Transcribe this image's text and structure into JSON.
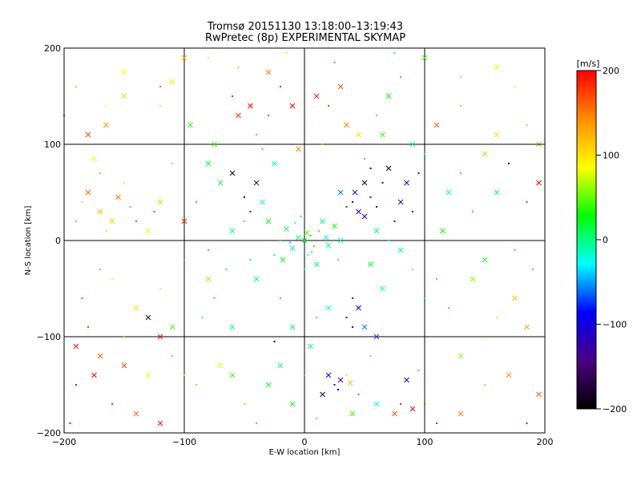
{
  "figure": {
    "title_line1": "Tromsø 20151130 13:18:00–13:19:43",
    "title_line2": "RwPretec (8p) EXPERIMENTAL SKYMAP"
  },
  "chart_data": {
    "type": "scatter",
    "title": "Tromsø 20151130 13:18:00–13:19:43",
    "subtitle": "RwPretec (8p) EXPERIMENTAL SKYMAP",
    "xlabel": "E-W location [km]",
    "ylabel": "N-S location [km]",
    "xlim": [
      -200,
      200
    ],
    "ylim": [
      -200,
      200
    ],
    "xticks": [
      -200,
      -100,
      0,
      100,
      200
    ],
    "yticks": [
      -200,
      -100,
      0,
      100,
      200
    ],
    "grid": true,
    "colorbar": {
      "label": "[m/s]",
      "range": [
        -200,
        200
      ],
      "ticks": [
        200,
        100,
        0,
        -100,
        -200
      ],
      "colormap": [
        "#000000",
        "#4b0082",
        "#0000ff",
        "#00ffff",
        "#00ff00",
        "#ffff00",
        "#ff8c00",
        "#ff0000"
      ],
      "placement": "right"
    },
    "marker_styles": [
      "dot",
      "x"
    ],
    "series": [
      {
        "values": [
          [
            0,
            0,
            10
          ],
          [
            5,
            5,
            20
          ],
          [
            -5,
            3,
            0
          ],
          [
            8,
            -6,
            30
          ],
          [
            -10,
            -8,
            -10
          ],
          [
            12,
            10,
            40
          ],
          [
            -15,
            12,
            10
          ],
          [
            3,
            -15,
            -20
          ],
          [
            20,
            -5,
            0
          ],
          [
            -20,
            0,
            20
          ],
          [
            15,
            20,
            0
          ],
          [
            -8,
            18,
            -30
          ],
          [
            25,
            15,
            30
          ],
          [
            -25,
            -15,
            10
          ],
          [
            10,
            -25,
            0
          ],
          [
            -3,
            25,
            20
          ],
          [
            30,
            0,
            -10
          ],
          [
            0,
            -30,
            0
          ],
          [
            -30,
            20,
            30
          ],
          [
            28,
            -20,
            10
          ],
          [
            2,
            8,
            50
          ],
          [
            -12,
            -2,
            -40
          ],
          [
            18,
            3,
            -20
          ],
          [
            6,
            -12,
            0
          ],
          [
            -18,
            -20,
            20
          ],
          [
            40,
            40,
            -90
          ],
          [
            45,
            30,
            -110
          ],
          [
            35,
            35,
            -70
          ],
          [
            50,
            25,
            -100
          ],
          [
            55,
            45,
            -80
          ],
          [
            42,
            50,
            -120
          ],
          [
            60,
            35,
            -150
          ],
          [
            30,
            50,
            -60
          ],
          [
            75,
            20,
            -130
          ],
          [
            80,
            40,
            -110
          ],
          [
            65,
            60,
            -160
          ],
          [
            85,
            60,
            -120
          ],
          [
            90,
            30,
            -100
          ],
          [
            50,
            60,
            -190
          ],
          [
            55,
            75,
            -180
          ],
          [
            70,
            75,
            -200
          ],
          [
            95,
            70,
            -140
          ],
          [
            -40,
            60,
            -160
          ],
          [
            -50,
            45,
            -180
          ],
          [
            -60,
            70,
            -190
          ],
          [
            -45,
            30,
            -120
          ],
          [
            -80,
            80,
            20
          ],
          [
            -110,
            80,
            60
          ],
          [
            -120,
            40,
            60
          ],
          [
            -150,
            60,
            80
          ],
          [
            -170,
            30,
            120
          ],
          [
            -185,
            40,
            110
          ],
          [
            -160,
            20,
            110
          ],
          [
            -145,
            35,
            140
          ],
          [
            -175,
            85,
            90
          ],
          [
            -165,
            10,
            100
          ],
          [
            -130,
            10,
            90
          ],
          [
            -190,
            20,
            130
          ],
          [
            -155,
            45,
            150
          ],
          [
            -140,
            20,
            170
          ],
          [
            -180,
            50,
            160
          ],
          [
            -170,
            70,
            130
          ],
          [
            -100,
            20,
            190
          ],
          [
            -125,
            30,
            180
          ],
          [
            -180,
            110,
            170
          ],
          [
            -165,
            140,
            90
          ],
          [
            -150,
            150,
            110
          ],
          [
            -60,
            150,
            190
          ],
          [
            -45,
            140,
            200
          ],
          [
            -30,
            130,
            170
          ],
          [
            -10,
            140,
            200
          ],
          [
            0,
            120,
            170
          ],
          [
            10,
            150,
            190
          ],
          [
            20,
            140,
            180
          ],
          [
            30,
            160,
            170
          ],
          [
            -20,
            160,
            200
          ],
          [
            -55,
            130,
            180
          ],
          [
            25,
            185,
            160
          ],
          [
            -5,
            95,
            150
          ],
          [
            -40,
            110,
            140
          ],
          [
            35,
            120,
            150
          ],
          [
            15,
            100,
            130
          ],
          [
            45,
            110,
            100
          ],
          [
            -100,
            -20,
            10
          ],
          [
            -80,
            -40,
            60
          ],
          [
            -120,
            -50,
            80
          ],
          [
            -140,
            -70,
            100
          ],
          [
            -160,
            -40,
            90
          ],
          [
            -110,
            -90,
            40
          ],
          [
            -75,
            -60,
            30
          ],
          [
            -60,
            -90,
            0
          ],
          [
            -85,
            -80,
            -10
          ],
          [
            -130,
            -80,
            -180
          ],
          [
            -150,
            -100,
            130
          ],
          [
            -120,
            -100,
            200
          ],
          [
            -170,
            -30,
            140
          ],
          [
            -190,
            -110,
            190
          ],
          [
            -185,
            -60,
            170
          ],
          [
            -175,
            -140,
            200
          ],
          [
            -160,
            -170,
            180
          ],
          [
            -140,
            -180,
            160
          ],
          [
            -195,
            -190,
            200
          ],
          [
            -120,
            -190,
            200
          ],
          [
            -90,
            -150,
            120
          ],
          [
            -70,
            -130,
            80
          ],
          [
            -50,
            -170,
            60
          ],
          [
            -30,
            -150,
            20
          ],
          [
            -25,
            -105,
            -200
          ],
          [
            -10,
            -90,
            10
          ],
          [
            10,
            -80,
            0
          ],
          [
            20,
            -70,
            -30
          ],
          [
            -20,
            -60,
            20
          ],
          [
            5,
            -110,
            0
          ],
          [
            40,
            -60,
            -80
          ],
          [
            45,
            -70,
            -100
          ],
          [
            35,
            -80,
            -90
          ],
          [
            50,
            -90,
            -60
          ],
          [
            40,
            -90,
            -120
          ],
          [
            60,
            -100,
            -70
          ],
          [
            55,
            -120,
            -30
          ],
          [
            20,
            -140,
            -110
          ],
          [
            25,
            -150,
            -120
          ],
          [
            30,
            -145,
            -130
          ],
          [
            35,
            -140,
            100
          ],
          [
            38,
            -148,
            120
          ],
          [
            28,
            -155,
            -200
          ],
          [
            15,
            -160,
            -180
          ],
          [
            45,
            -160,
            -50
          ],
          [
            60,
            -170,
            -30
          ],
          [
            80,
            -170,
            190
          ],
          [
            90,
            -175,
            200
          ],
          [
            100,
            -170,
            180
          ],
          [
            75,
            -180,
            170
          ],
          [
            110,
            -190,
            190
          ],
          [
            85,
            -145,
            -100
          ],
          [
            95,
            -135,
            30
          ],
          [
            130,
            -180,
            150
          ],
          [
            150,
            -150,
            120
          ],
          [
            170,
            -140,
            140
          ],
          [
            185,
            -190,
            200
          ],
          [
            195,
            -160,
            160
          ],
          [
            120,
            -70,
            40
          ],
          [
            140,
            -40,
            60
          ],
          [
            160,
            -80,
            100
          ],
          [
            175,
            -60,
            120
          ],
          [
            190,
            -30,
            140
          ],
          [
            185,
            -90,
            130
          ],
          [
            150,
            -100,
            160
          ],
          [
            130,
            -120,
            60
          ],
          [
            110,
            -40,
            10
          ],
          [
            150,
            -20,
            20
          ],
          [
            175,
            -10,
            30
          ],
          [
            115,
            10,
            30
          ],
          [
            140,
            30,
            20
          ],
          [
            160,
            50,
            10
          ],
          [
            185,
            40,
            180
          ],
          [
            195,
            60,
            200
          ],
          [
            170,
            80,
            -200
          ],
          [
            150,
            90,
            60
          ],
          [
            130,
            70,
            40
          ],
          [
            120,
            50,
            -10
          ],
          [
            100,
            90,
            0
          ],
          [
            110,
            120,
            160
          ],
          [
            130,
            140,
            120
          ],
          [
            160,
            110,
            100
          ],
          [
            185,
            120,
            120
          ],
          [
            195,
            100,
            130
          ],
          [
            175,
            160,
            90
          ],
          [
            160,
            180,
            80
          ],
          [
            130,
            170,
            60
          ],
          [
            100,
            190,
            40
          ],
          [
            80,
            170,
            20
          ],
          [
            70,
            150,
            30
          ],
          [
            60,
            130,
            40
          ],
          [
            90,
            100,
            10
          ],
          [
            75,
            195,
            0
          ],
          [
            -95,
            120,
            30
          ],
          [
            -120,
            140,
            70
          ],
          [
            -150,
            175,
            90
          ],
          [
            -190,
            160,
            120
          ],
          [
            -110,
            165,
            100
          ],
          [
            -80,
            190,
            80
          ],
          [
            -100,
            190,
            120
          ],
          [
            -120,
            160,
            160
          ],
          [
            -165,
            120,
            140
          ],
          [
            -200,
            130,
            170
          ],
          [
            -75,
            100,
            40
          ],
          [
            -55,
            180,
            60
          ],
          [
            -30,
            175,
            150
          ],
          [
            -15,
            195,
            100
          ],
          [
            65,
            110,
            40
          ],
          [
            50,
            85,
            20
          ],
          [
            -25,
            80,
            -10
          ],
          [
            -35,
            95,
            20
          ],
          [
            -70,
            60,
            10
          ],
          [
            -90,
            40,
            30
          ],
          [
            -60,
            10,
            0
          ],
          [
            -80,
            -10,
            20
          ],
          [
            80,
            -10,
            0
          ],
          [
            90,
            -30,
            -20
          ],
          [
            65,
            -50,
            -30
          ],
          [
            100,
            -60,
            10
          ],
          [
            -40,
            -40,
            0
          ],
          [
            -45,
            -20,
            10
          ],
          [
            -35,
            40,
            -20
          ],
          [
            -50,
            20,
            10
          ],
          [
            60,
            10,
            0
          ],
          [
            70,
            0,
            -10
          ],
          [
            55,
            -25,
            20
          ],
          [
            -65,
            -30,
            0
          ],
          [
            -20,
            -130,
            0
          ],
          [
            0,
            -140,
            20
          ],
          [
            -10,
            -170,
            30
          ],
          [
            10,
            -185,
            0
          ],
          [
            40,
            -180,
            40
          ],
          [
            -40,
            -190,
            20
          ],
          [
            -60,
            -140,
            40
          ],
          [
            -100,
            -140,
            70
          ],
          [
            -130,
            -140,
            80
          ],
          [
            -110,
            -120,
            50
          ],
          [
            -150,
            -130,
            170
          ],
          [
            -180,
            -90,
            180
          ],
          [
            -170,
            -120,
            160
          ],
          [
            -190,
            -150,
            200
          ]
        ]
      }
    ]
  }
}
